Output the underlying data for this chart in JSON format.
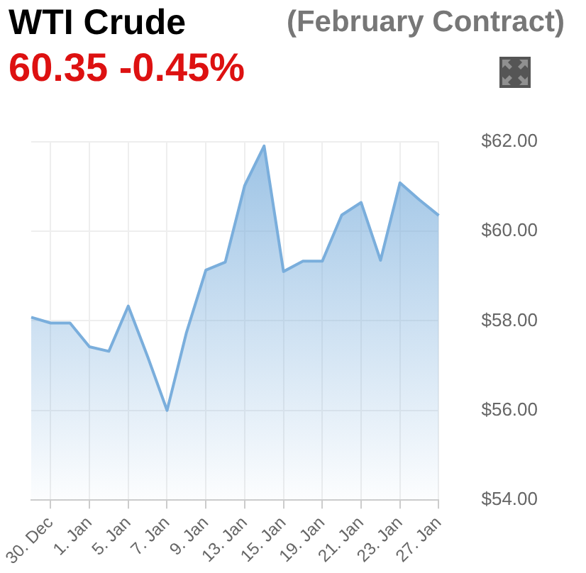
{
  "chart_data": {
    "type": "area",
    "title": "WTI Crude",
    "subtitle": "(February Contract)",
    "annotations": [
      "60.35 -0.45%"
    ],
    "categories": [
      null,
      "30. Dec",
      null,
      "1. Jan",
      null,
      "5. Jan",
      null,
      "7. Jan",
      null,
      "9. Jan",
      null,
      "13. Jan",
      null,
      "15. Jan",
      null,
      "19. Jan",
      null,
      "21. Jan",
      null,
      "23. Jan",
      null,
      "27. Jan"
    ],
    "series": [
      {
        "color": "#7aaedc",
        "values": [
          58.08,
          57.95,
          57.95,
          57.42,
          57.32,
          58.33,
          57.2,
          56.0,
          57.74,
          59.13,
          59.31,
          61.02,
          61.9,
          59.1,
          59.33,
          59.33,
          60.36,
          60.64,
          59.35,
          61.08,
          60.7,
          60.35
        ]
      }
    ],
    "ylim": [
      54,
      62
    ],
    "yticks": [
      {
        "value": 54,
        "label": "$54.00"
      },
      {
        "value": 56,
        "label": "$56.00"
      },
      {
        "value": 58,
        "label": "$58.00"
      },
      {
        "value": 60,
        "label": "$60.00"
      },
      {
        "value": 62,
        "label": "$62.00"
      }
    ],
    "grid": true,
    "legend": false,
    "marker": "none",
    "line_style": "solid"
  }
}
